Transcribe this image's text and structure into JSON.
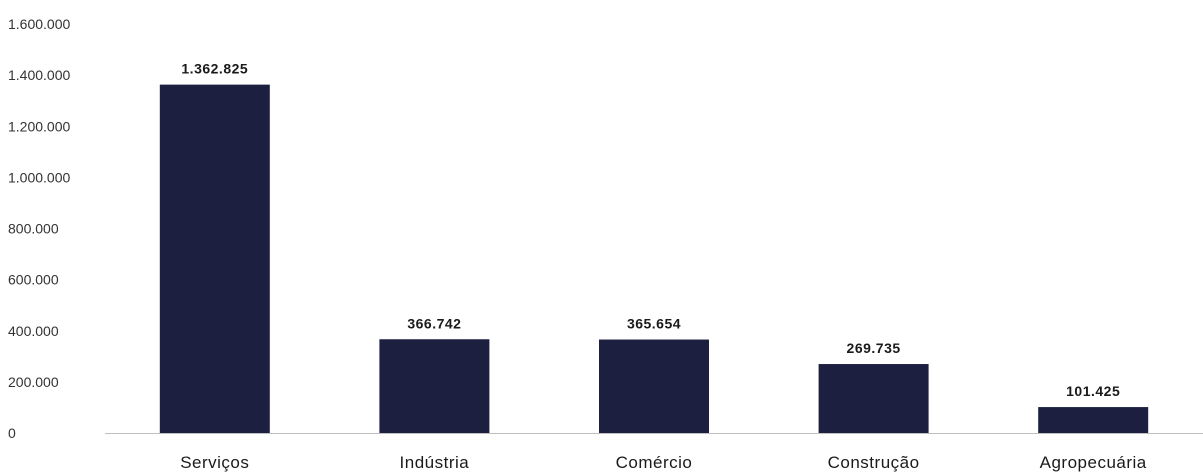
{
  "chart_data": {
    "type": "bar",
    "categories": [
      "Serviços",
      "Indústria",
      "Comércio",
      "Construção",
      "Agropecuária"
    ],
    "values": [
      1362825,
      366742,
      365654,
      269735,
      101425
    ],
    "value_labels": [
      "1.362.825",
      "366.742",
      "365.654",
      "269.735",
      "101.425"
    ],
    "yticks": [
      0,
      200000,
      400000,
      600000,
      800000,
      1000000,
      1200000,
      1400000,
      1600000
    ],
    "ytick_labels": [
      "0",
      "200.000",
      "400.000",
      "600.000",
      "800.000",
      "1.000.000",
      "1.200.000",
      "1.400.000",
      "1.600.000"
    ],
    "ylim": [
      0,
      1600000
    ],
    "grid": false,
    "bar_color": "#1c1f3f",
    "axis_color": "#bfbfbf"
  }
}
